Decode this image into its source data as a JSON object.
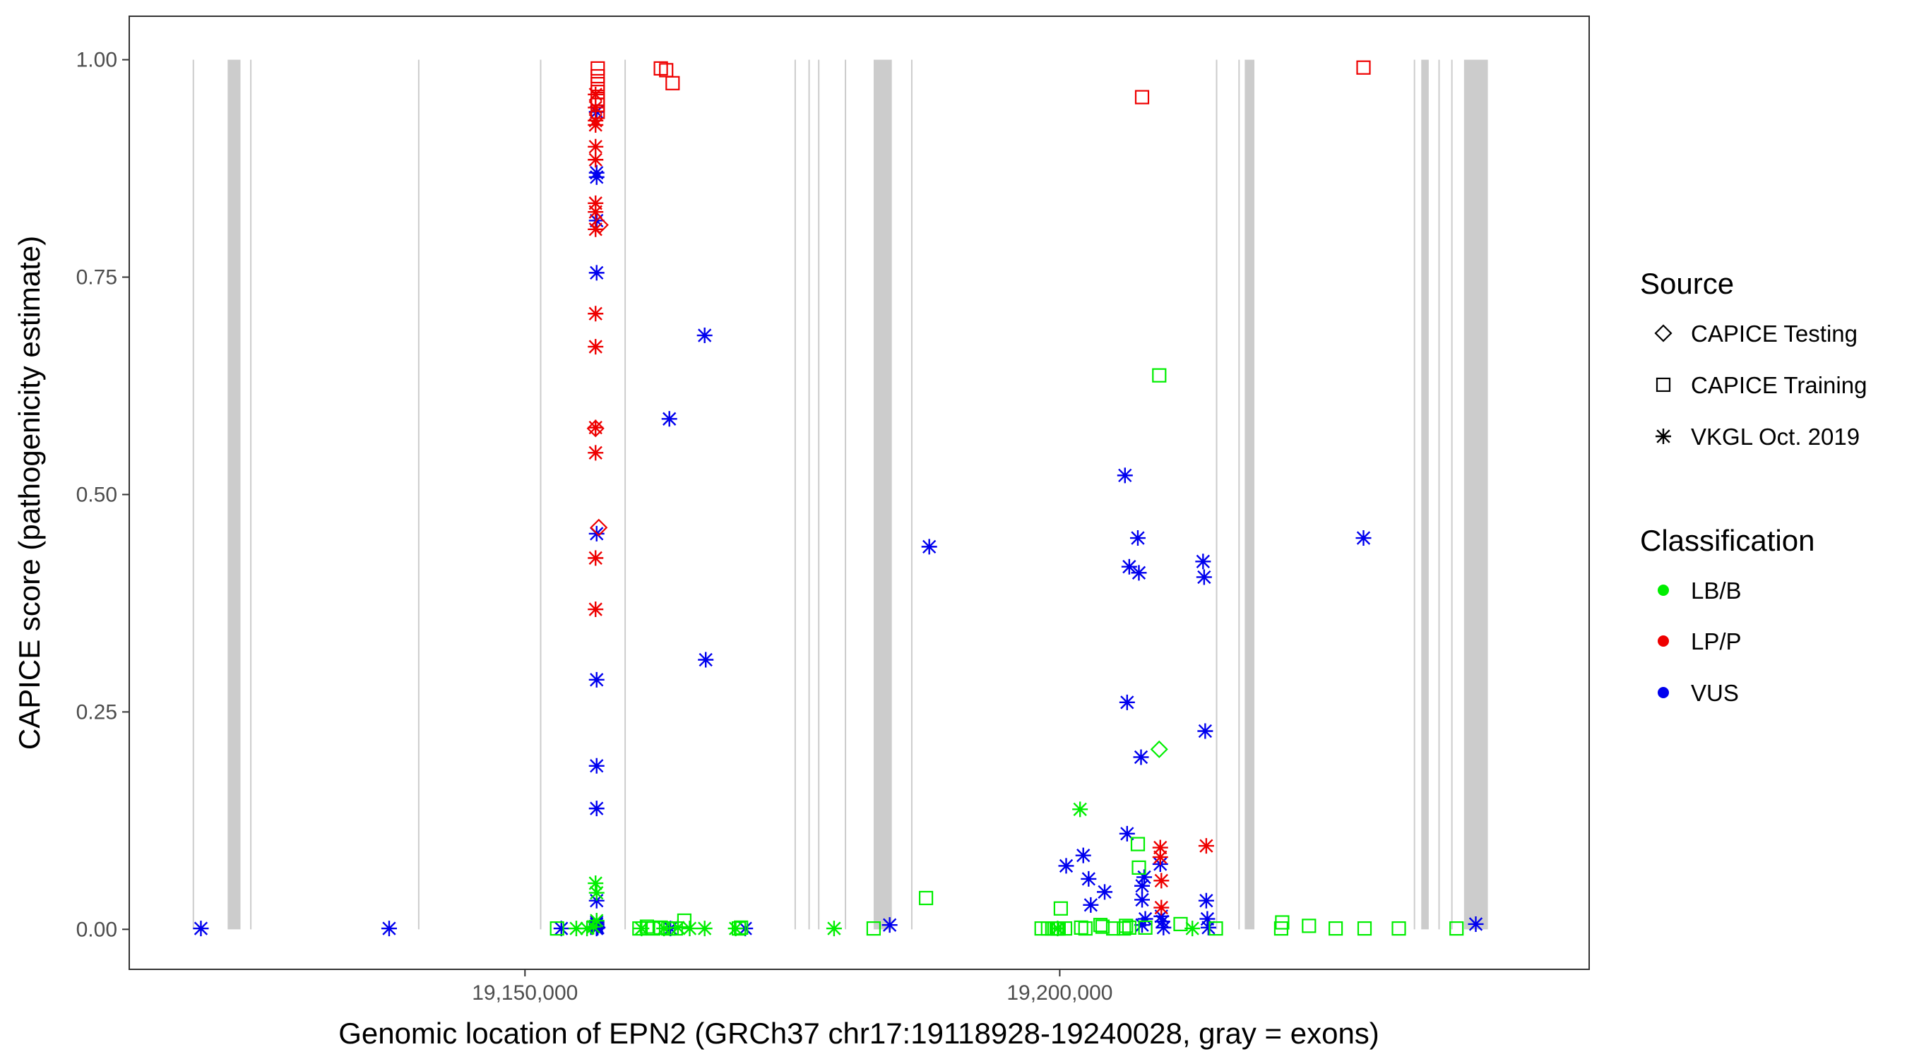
{
  "chart_data": {
    "type": "scatter",
    "title": "",
    "xlabel": "Genomic location of EPN2 (GRCh37 chr17:19118928-19240028, gray = exons)",
    "ylabel": "CAPICE score (pathogenicity estimate)",
    "xlim": [
      19113000,
      19249500
    ],
    "ylim": [
      -0.046,
      1.05
    ],
    "x_ticks": [
      19150000,
      19200000
    ],
    "x_tick_labels": [
      "19,150,000",
      "19,200,000"
    ],
    "y_ticks": [
      0,
      0.25,
      0.5,
      0.75,
      1.0
    ],
    "y_tick_labels": [
      "0.00",
      "0.25",
      "0.50",
      "0.75",
      "1.00"
    ],
    "grid": false,
    "legend_position": "right",
    "exons": [
      [
        19118928,
        19119000
      ],
      [
        19122200,
        19123400
      ],
      [
        19124300,
        19124400
      ],
      [
        19140000,
        19140090
      ],
      [
        19151400,
        19151500
      ],
      [
        19159300,
        19159400
      ],
      [
        19175200,
        19175290
      ],
      [
        19176500,
        19176600
      ],
      [
        19177400,
        19177500
      ],
      [
        19179900,
        19180000
      ],
      [
        19182600,
        19184300
      ],
      [
        19186100,
        19186200
      ],
      [
        19214600,
        19214700
      ],
      [
        19216700,
        19216800
      ],
      [
        19217300,
        19218200
      ],
      [
        19233100,
        19233200
      ],
      [
        19233800,
        19234500
      ],
      [
        19235400,
        19235500
      ],
      [
        19236600,
        19236700
      ],
      [
        19237800,
        19240028
      ]
    ],
    "legend": {
      "source_title": "Source",
      "source_items": [
        {
          "label": "CAPICE Testing",
          "shape": "diamond"
        },
        {
          "label": "CAPICE Training",
          "shape": "square"
        },
        {
          "label": "VKGL Oct. 2019",
          "shape": "asterisk"
        }
      ],
      "class_title": "Classification",
      "class_items": [
        {
          "label": "LB/B",
          "color": "#00ee00"
        },
        {
          "label": "LP/P",
          "color": "#ee0000"
        },
        {
          "label": "VUS",
          "color": "#0000ee"
        }
      ]
    },
    "series": [
      {
        "source": "VKGL Oct. 2019",
        "classification": "VUS",
        "x": [
          19119700,
          19137300,
          19153400,
          19156700,
          19156700,
          19156700,
          19156700,
          19156700,
          19156700,
          19156700,
          19156700,
          19156700,
          19156700,
          19156700,
          19156700,
          19156700,
          19156700,
          19156700,
          19156700,
          19156800,
          19163500,
          19163600,
          19166800,
          19166900,
          19170600,
          19184100,
          19187800,
          19200600,
          19202200,
          19202700,
          19202900,
          19204200,
          19206100,
          19206300,
          19206300,
          19206500,
          19207300,
          19207400,
          19207600,
          19207700,
          19207700,
          19207700,
          19207900,
          19208000,
          19209400,
          19209500,
          19209600,
          19209700,
          19213400,
          19213500,
          19213600,
          19213700,
          19213800,
          19213900,
          19228400,
          19238900
        ],
        "y": [
          0.001,
          0.001,
          0.001,
          0.94,
          0.87,
          0.865,
          0.815,
          0.755,
          0.455,
          0.287,
          0.188,
          0.139,
          0.033,
          0.006,
          0.003,
          0.008,
          0.001,
          0.002,
          0.004,
          0.002,
          0.587,
          0.001,
          0.683,
          0.31,
          0.001,
          0.005,
          0.44,
          0.073,
          0.085,
          0.058,
          0.028,
          0.043,
          0.522,
          0.261,
          0.11,
          0.417,
          0.45,
          0.41,
          0.198,
          0.05,
          0.034,
          0.005,
          0.06,
          0.012,
          0.075,
          0.015,
          0.009,
          0.002,
          0.423,
          0.405,
          0.228,
          0.033,
          0.012,
          0.002,
          0.45,
          0.006
        ]
      },
      {
        "source": "VKGL Oct. 2019",
        "classification": "LP/P",
        "x": [
          19156600,
          19156600,
          19156600,
          19156600,
          19156600,
          19156600,
          19156600,
          19156600,
          19156600,
          19156600,
          19156600,
          19156600,
          19156600,
          19156600,
          19156600,
          19209400,
          19209400,
          19209500,
          19209500,
          19213700
        ],
        "y": [
          0.96,
          0.945,
          0.93,
          0.925,
          0.9,
          0.885,
          0.835,
          0.825,
          0.805,
          0.708,
          0.67,
          0.577,
          0.548,
          0.427,
          0.368,
          0.094,
          0.083,
          0.056,
          0.025,
          0.096
        ]
      },
      {
        "source": "VKGL Oct. 2019",
        "classification": "LB/B",
        "x": [
          19154800,
          19155800,
          19156400,
          19156600,
          19156700,
          19156700,
          19160900,
          19163000,
          19164300,
          19165400,
          19166800,
          19169700,
          19178900,
          19199800,
          19201900,
          19212400
        ],
        "y": [
          0.001,
          0.001,
          0.003,
          0.053,
          0.042,
          0.01,
          0.001,
          0.001,
          0.002,
          0.001,
          0.001,
          0.001,
          0.001,
          0.001,
          0.138,
          0.001
        ]
      },
      {
        "source": "CAPICE Training",
        "classification": "LP/P",
        "x": [
          19156800,
          19156800,
          19156800,
          19156800,
          19156800,
          19156800,
          19156800,
          19162700,
          19163200,
          19163800,
          19207700,
          19228400
        ],
        "y": [
          0.99,
          0.981,
          0.972,
          0.963,
          0.955,
          0.948,
          0.94,
          0.99,
          0.988,
          0.973,
          0.957,
          0.991
        ]
      },
      {
        "source": "CAPICE Training",
        "classification": "LB/B",
        "x": [
          19153000,
          19160700,
          19161400,
          19162000,
          19162700,
          19163400,
          19164100,
          19164900,
          19170000,
          19170200,
          19182600,
          19187500,
          19198300,
          19198900,
          19199300,
          19199500,
          19199700,
          19199800,
          19199900,
          19200100,
          19200500,
          19202000,
          19202400,
          19203800,
          19204000,
          19205000,
          19206000,
          19206200,
          19206500,
          19207300,
          19207400,
          19208000,
          19209300,
          19211300,
          19214600,
          19220700,
          19220800,
          19223300,
          19225800,
          19228500,
          19231700,
          19237100
        ],
        "y": [
          0.001,
          0.001,
          0.003,
          0.001,
          0.002,
          0.001,
          0.001,
          0.01,
          0.001,
          0.002,
          0.001,
          0.036,
          0.001,
          0.001,
          0.001,
          0.001,
          0.001,
          0.001,
          0.001,
          0.024,
          0.001,
          0.002,
          0.001,
          0.005,
          0.003,
          0.001,
          0.001,
          0.004,
          0.002,
          0.098,
          0.071,
          0.002,
          0.637,
          0.006,
          0.001,
          0.001,
          0.008,
          0.004,
          0.001,
          0.001,
          0.001,
          0.001
        ]
      },
      {
        "source": "CAPICE Testing",
        "classification": "LP/P",
        "x": [
          19156600,
          19156900,
          19157000
        ],
        "y": [
          0.576,
          0.462,
          0.81
        ]
      },
      {
        "source": "CAPICE Testing",
        "classification": "LB/B",
        "x": [
          19209300
        ],
        "y": [
          0.207
        ]
      }
    ]
  }
}
